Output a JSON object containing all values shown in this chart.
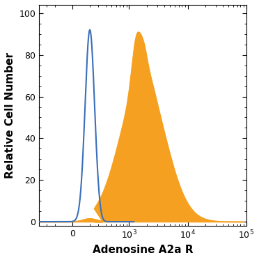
{
  "title": "",
  "xlabel": "Adenosine A2a R",
  "ylabel": "Relative Cell Number",
  "ylim": [
    -2,
    104
  ],
  "yticks": [
    0,
    20,
    40,
    60,
    80,
    100
  ],
  "blue_color": "#3a6fba",
  "orange_color": "#f5a020",
  "background": "#ffffff",
  "xlabel_fontsize": 11,
  "ylabel_fontsize": 11,
  "tick_fontsize": 9,
  "linthresh": 300,
  "linscale": 0.4
}
